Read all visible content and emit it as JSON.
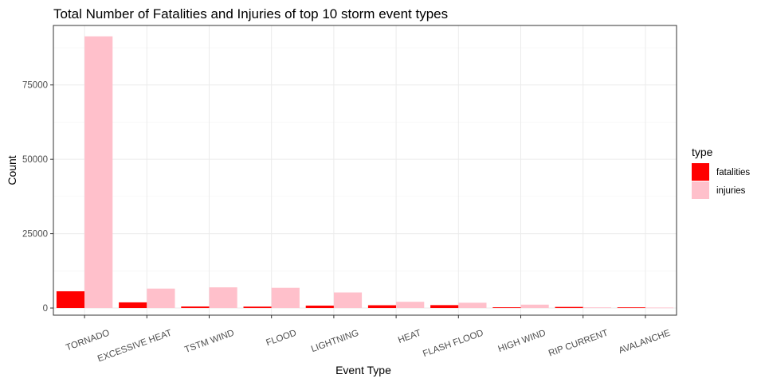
{
  "chart_data": {
    "type": "bar",
    "title": "Total Number of Fatalities and Injuries of top 10 storm event types",
    "xlabel": "Event Type",
    "ylabel": "Count",
    "categories": [
      "TORNADO",
      "EXCESSIVE HEAT",
      "TSTM WIND",
      "FLOOD",
      "LIGHTNING",
      "HEAT",
      "FLASH FLOOD",
      "HIGH WIND",
      "RIP CURRENT",
      "AVALANCHE"
    ],
    "series": [
      {
        "name": "fatalities",
        "color": "#FF0000",
        "values": [
          5633,
          1903,
          504,
          470,
          816,
          937,
          978,
          248,
          368,
          224
        ]
      },
      {
        "name": "injuries",
        "color": "#FFC0CB",
        "values": [
          91346,
          6525,
          6957,
          6789,
          5230,
          2100,
          1777,
          1137,
          232,
          170
        ]
      }
    ],
    "ylim": [
      -2400,
      95000
    ],
    "yticks": [
      0,
      25000,
      50000,
      75000
    ],
    "ytick_labels": [
      "0",
      "25000",
      "50000",
      "75000"
    ],
    "legend": {
      "title": "type",
      "position": "right"
    },
    "grid": true
  }
}
